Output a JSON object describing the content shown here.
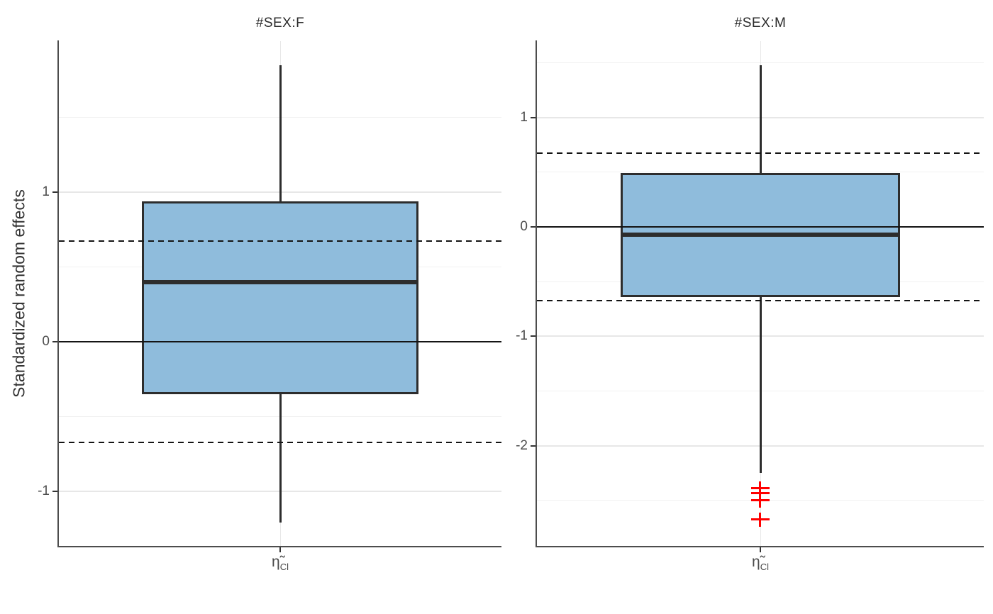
{
  "figure": {
    "ylabel": "Standardized random effects"
  },
  "colors": {
    "box_fill": "#8FBCDC",
    "box_border": "#2D2D2D",
    "outlier_red": "#FF0000",
    "reference_line": "#141414",
    "grid_major": "#E7E7E7",
    "grid_minor": "#F1F1F1",
    "axis": "#4D4D4D",
    "tick_label": "#4D4D4D",
    "title_text": "#2B2B2B"
  },
  "chart_data": [
    {
      "type": "boxplot",
      "title": "#SEX:F",
      "x_tick_base": "η̃",
      "x_tick_sub": "Cl",
      "ylabel": "Standardized random effects",
      "ylim": [
        -1.365,
        2.01
      ],
      "yticks": [
        1,
        0,
        -1
      ],
      "grid_major": [
        1,
        0,
        -1
      ],
      "grid_minor": [
        1.5,
        0.5,
        -0.5
      ],
      "zero_line": 0,
      "dashed_lines": [
        0.674,
        -0.674
      ],
      "box": {
        "whisker_high": 1.85,
        "q3": 0.94,
        "median": 0.4,
        "q1": -0.35,
        "whisker_low": -1.21
      },
      "outliers": []
    },
    {
      "type": "boxplot",
      "title": "#SEX:M",
      "x_tick_base": "η̃",
      "x_tick_sub": "Cl",
      "ylim": [
        -2.917,
        1.698
      ],
      "yticks": [
        1,
        0,
        -1,
        -2
      ],
      "grid_major": [
        1,
        0,
        -1,
        -2
      ],
      "grid_minor": [
        1.5,
        0.5,
        -0.5,
        -1.5,
        -2.5
      ],
      "zero_line": 0,
      "dashed_lines": [
        0.674,
        -0.674
      ],
      "box": {
        "whisker_high": 1.48,
        "q3": 0.49,
        "median": -0.07,
        "q1": -0.64,
        "whisker_low": -2.25
      },
      "outliers": [
        -2.39,
        -2.44,
        -2.5,
        -2.68
      ]
    }
  ]
}
